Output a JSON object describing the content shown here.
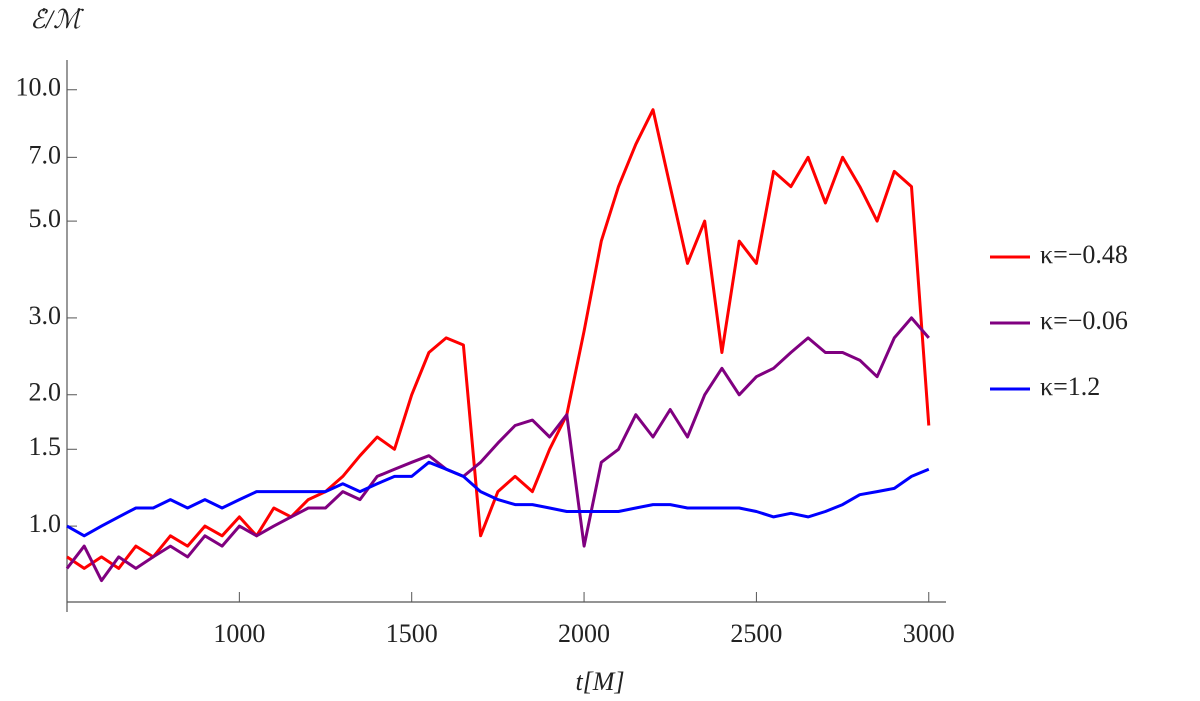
{
  "chart_data": {
    "type": "line",
    "y_label": "ℰ̇/ℳ̇",
    "x_label": "t[M]",
    "x": [
      500,
      550,
      600,
      650,
      700,
      750,
      800,
      850,
      900,
      950,
      1000,
      1050,
      1100,
      1150,
      1200,
      1250,
      1300,
      1350,
      1400,
      1450,
      1500,
      1550,
      1600,
      1650,
      1700,
      1750,
      1800,
      1850,
      1900,
      1950,
      2000,
      2050,
      2100,
      2150,
      2200,
      2250,
      2300,
      2350,
      2400,
      2450,
      2500,
      2550,
      2600,
      2650,
      2700,
      2750,
      2800,
      2850,
      2900,
      2950,
      3000
    ],
    "series": [
      {
        "name": "κ=−0.48",
        "color": "#ff0000",
        "values": [
          0.85,
          0.8,
          0.85,
          0.8,
          0.9,
          0.85,
          0.95,
          0.9,
          1.0,
          0.95,
          1.05,
          0.95,
          1.1,
          1.05,
          1.15,
          1.2,
          1.3,
          1.45,
          1.6,
          1.5,
          2.0,
          2.5,
          2.7,
          2.6,
          0.95,
          1.2,
          1.3,
          1.2,
          1.5,
          1.8,
          2.8,
          4.5,
          6.0,
          7.5,
          9.0,
          6.0,
          4.0,
          5.0,
          2.5,
          4.5,
          4.0,
          6.5,
          6.0,
          7.0,
          5.5,
          7.0,
          6.0,
          5.0,
          6.5,
          6.0,
          1.7
        ]
      },
      {
        "name": "κ=−0.06",
        "color": "#800080",
        "values": [
          0.8,
          0.9,
          0.75,
          0.85,
          0.8,
          0.85,
          0.9,
          0.85,
          0.95,
          0.9,
          1.0,
          0.95,
          1.0,
          1.05,
          1.1,
          1.1,
          1.2,
          1.15,
          1.3,
          1.35,
          1.4,
          1.45,
          1.35,
          1.3,
          1.4,
          1.55,
          1.7,
          1.75,
          1.6,
          1.8,
          0.9,
          1.4,
          1.5,
          1.8,
          1.6,
          1.85,
          1.6,
          2.0,
          2.3,
          2.0,
          2.2,
          2.3,
          2.5,
          2.7,
          2.5,
          2.5,
          2.4,
          2.2,
          2.7,
          3.0,
          2.7
        ]
      },
      {
        "name": "κ=1.2",
        "color": "#0000ff",
        "values": [
          1.0,
          0.95,
          1.0,
          1.05,
          1.1,
          1.1,
          1.15,
          1.1,
          1.15,
          1.1,
          1.15,
          1.2,
          1.2,
          1.2,
          1.2,
          1.2,
          1.25,
          1.2,
          1.25,
          1.3,
          1.3,
          1.4,
          1.35,
          1.3,
          1.2,
          1.15,
          1.12,
          1.12,
          1.1,
          1.08,
          1.08,
          1.08,
          1.08,
          1.1,
          1.12,
          1.12,
          1.1,
          1.1,
          1.1,
          1.1,
          1.08,
          1.05,
          1.07,
          1.05,
          1.08,
          1.12,
          1.18,
          1.2,
          1.22,
          1.3,
          1.35
        ]
      }
    ],
    "xlim": [
      500,
      3050
    ],
    "xticks": [
      1000,
      1500,
      2000,
      2500,
      3000
    ],
    "ylim": [
      0.67,
      11.7
    ],
    "yticks": [
      {
        "value": 1,
        "label": "1.0"
      },
      {
        "value": 1.5,
        "label": "1.5"
      },
      {
        "value": 2,
        "label": "2.0"
      },
      {
        "value": 3,
        "label": "3.0"
      },
      {
        "value": 5,
        "label": "5.0"
      },
      {
        "value": 7,
        "label": "7.0"
      },
      {
        "value": 10,
        "label": "10.0"
      }
    ],
    "log_y": true,
    "legend": "right"
  }
}
